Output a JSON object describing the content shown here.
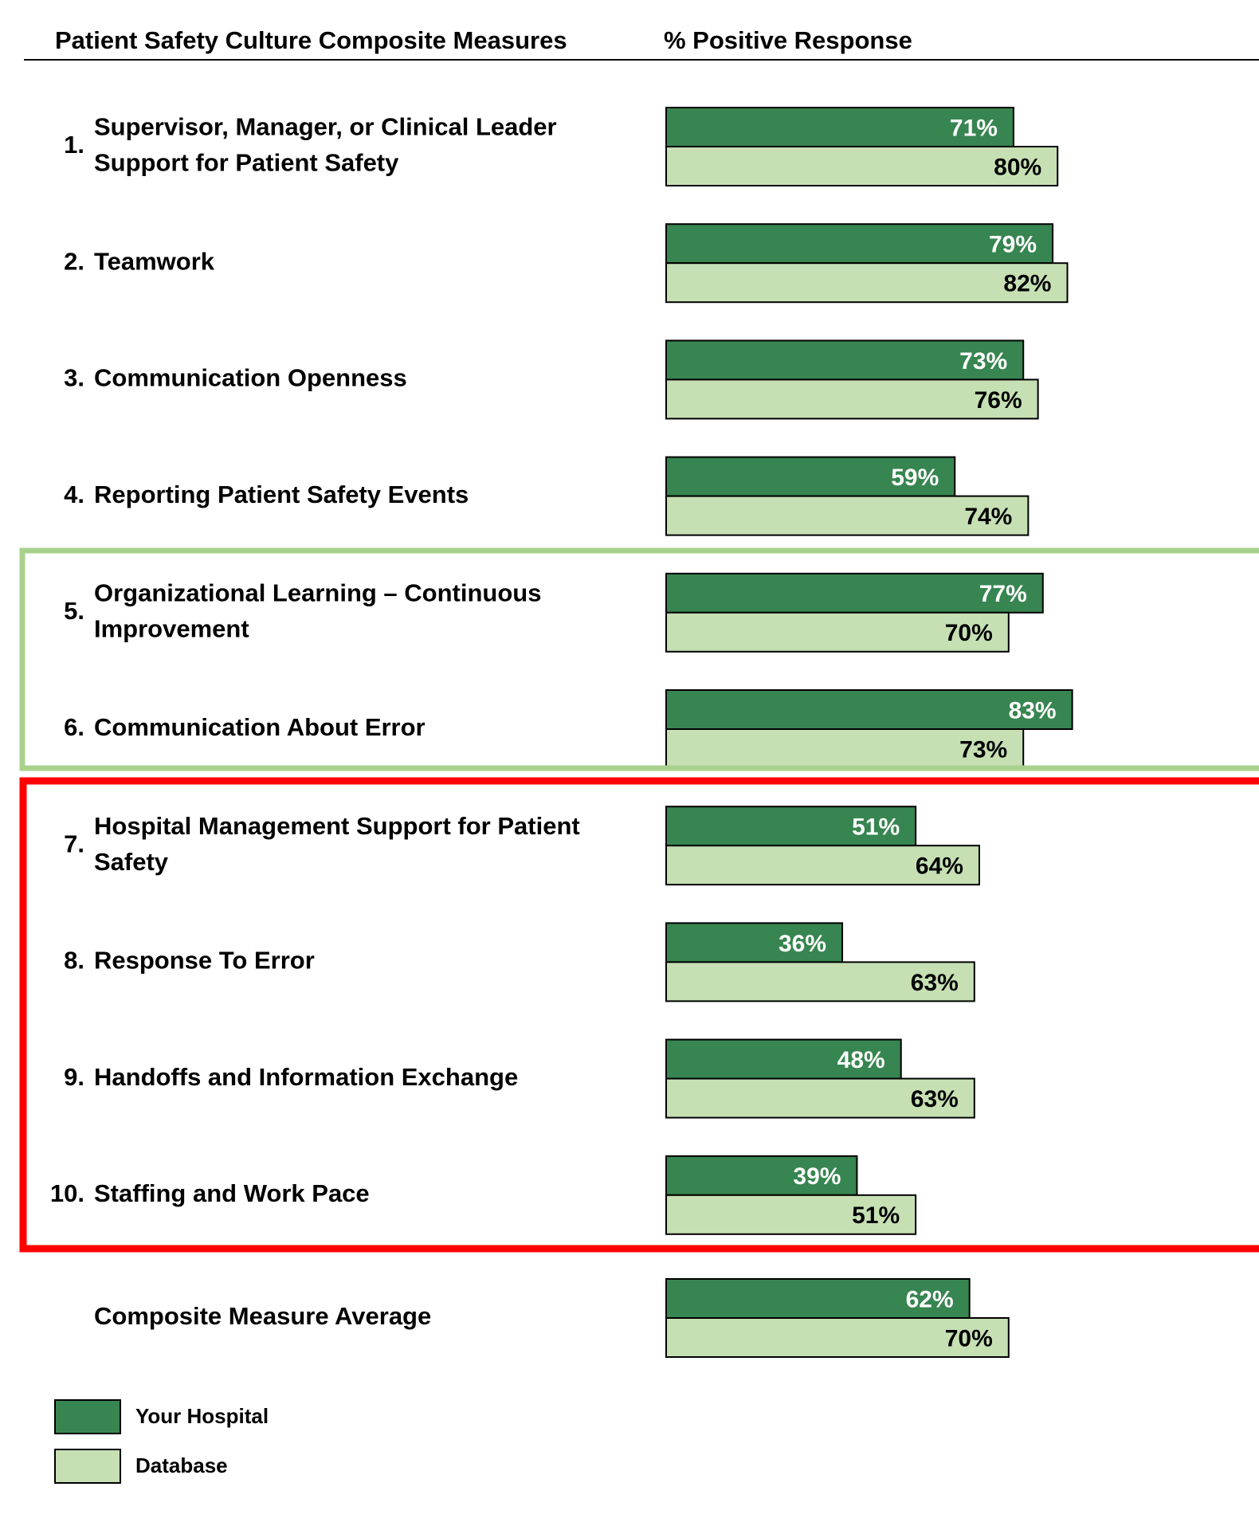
{
  "chart_data": {
    "type": "bar",
    "orientation": "horizontal",
    "title": "Patient Safety Culture Composite Measures",
    "value_axis_label": "% Positive Response",
    "category_numbers": [
      "1.",
      "2.",
      "3.",
      "4.",
      "5.",
      "6.",
      "7.",
      "8.",
      "9.",
      "10.",
      null
    ],
    "categories": [
      [
        "Supervisor, Manager, or Clinical Leader",
        "Support for Patient Safety"
      ],
      [
        "Teamwork"
      ],
      [
        "Communication Openness"
      ],
      [
        "Reporting Patient Safety Events"
      ],
      [
        "Organizational Learning – Continuous",
        "Improvement"
      ],
      [
        "Communication About Error"
      ],
      [
        "Hospital Management Support for Patient",
        "Safety"
      ],
      [
        "Response To Error"
      ],
      [
        "Handoffs and Information Exchange"
      ],
      [
        "Staffing and Work Pace"
      ],
      [
        "Composite Measure Average"
      ]
    ],
    "series": [
      {
        "name": "Your Hospital",
        "color": "#378550",
        "label_color": "#ffffff",
        "values": [
          71,
          79,
          73,
          59,
          77,
          83,
          51,
          36,
          48,
          39,
          62
        ],
        "value_labels": [
          "71%",
          "79%",
          "73%",
          "59%",
          "77%",
          "83%",
          "51%",
          "36%",
          "48%",
          "39%",
          "62%"
        ]
      },
      {
        "name": "Database",
        "color": "#c6e0b4",
        "label_color": "#000000",
        "values": [
          80,
          82,
          76,
          74,
          70,
          73,
          64,
          63,
          63,
          51,
          70
        ],
        "value_labels": [
          "80%",
          "82%",
          "76%",
          "74%",
          "70%",
          "73%",
          "64%",
          "63%",
          "63%",
          "51%",
          "70%"
        ]
      }
    ],
    "xlim": [
      0,
      100
    ]
  }
}
